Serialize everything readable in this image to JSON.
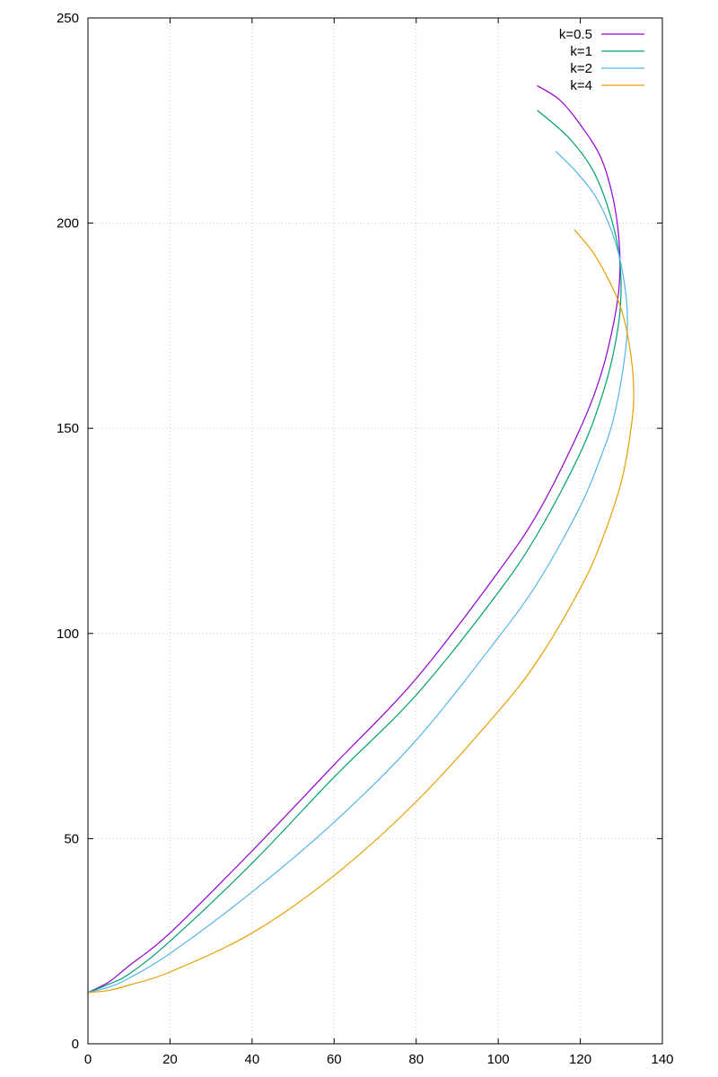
{
  "chart_data": {
    "type": "line",
    "title": "",
    "xlabel": "",
    "ylabel": "",
    "xlim": [
      0,
      140
    ],
    "ylim": [
      0,
      250
    ],
    "xticks": [
      0,
      20,
      40,
      60,
      80,
      100,
      120,
      140
    ],
    "yticks": [
      0,
      50,
      100,
      150,
      200,
      250
    ],
    "xtick_labels": [
      "0",
      "20",
      "40",
      "60",
      "80",
      "100",
      "120",
      "140"
    ],
    "ytick_labels": [
      "0",
      "50",
      "100",
      "150",
      "200",
      "250"
    ],
    "grid": true,
    "legend_position": "top-right",
    "series": [
      {
        "name": "k=0.5",
        "color": "#9400d3",
        "x": [
          0,
          5,
          10,
          20,
          40,
          60,
          80,
          100,
          110,
          120,
          125,
          128,
          129.5,
          129.5,
          128,
          125,
          120,
          115,
          109.5
        ],
        "y": [
          12.5,
          15,
          19,
          27,
          47,
          68,
          89,
          115,
          130,
          150,
          163,
          175,
          185,
          195,
          206,
          216,
          224,
          230,
          233.5
        ]
      },
      {
        "name": "k=1",
        "color": "#009e73",
        "x": [
          0,
          5,
          10,
          20,
          40,
          60,
          80,
          100,
          110,
          120,
          125,
          128,
          129.8,
          129.5,
          127,
          123,
          117,
          109.5
        ],
        "y": [
          12.5,
          14.5,
          17,
          25,
          44,
          65,
          85,
          110,
          125,
          144,
          157,
          168,
          180,
          192,
          203,
          213,
          221,
          227.5
        ]
      },
      {
        "name": "k=2",
        "color": "#56b4e9",
        "x": [
          0,
          5,
          10,
          20,
          40,
          60,
          80,
          100,
          110,
          120,
          125,
          128,
          130.5,
          131.5,
          130.5,
          128,
          124,
          119,
          114
        ],
        "y": [
          12.5,
          13.8,
          16,
          22,
          37,
          54,
          74,
          99,
          113,
          131,
          143,
          152,
          165,
          176,
          187,
          197,
          206,
          212.5,
          217.5
        ]
      },
      {
        "name": "k=4",
        "color": "#e69f00",
        "x": [
          0,
          5,
          10,
          20,
          40,
          60,
          80,
          100,
          110,
          120,
          125,
          130,
          132.5,
          133,
          132,
          130,
          127,
          123,
          118.5
        ],
        "y": [
          12.5,
          13,
          14.3,
          17.5,
          27,
          41,
          59,
          81,
          94,
          111,
          122,
          137,
          151,
          160,
          170,
          179,
          186,
          193,
          198.5
        ]
      }
    ]
  }
}
